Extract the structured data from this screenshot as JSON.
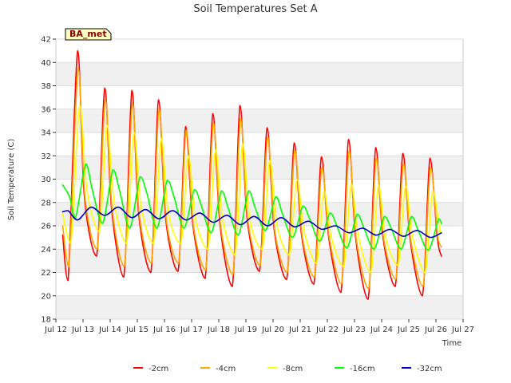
{
  "chart_data": {
    "type": "line",
    "title": "Soil Temperatures Set A",
    "xlabel": "Time",
    "ylabel": "Soil Temperature (C)",
    "badge": "BA_met",
    "xlim": [
      12,
      27
    ],
    "ylim": [
      18,
      42
    ],
    "x_ticks": [
      12,
      13,
      14,
      15,
      16,
      17,
      18,
      19,
      20,
      21,
      22,
      23,
      24,
      25,
      26,
      27
    ],
    "x_tick_labels": [
      "Jul 12",
      "Jul 13",
      "Jul 14",
      "Jul 15",
      "Jul 16",
      "Jul 17",
      "Jul 18",
      "Jul 19",
      "Jul 20",
      "Jul 21",
      "Jul 22",
      "Jul 23",
      "Jul 24",
      "Jul 25",
      "Jul 26",
      "Jul 27"
    ],
    "y_ticks": [
      18,
      20,
      22,
      24,
      26,
      28,
      30,
      32,
      34,
      36,
      38,
      40,
      42
    ],
    "y_tick_labels": [
      "18",
      "20",
      "22",
      "24",
      "26",
      "28",
      "30",
      "32",
      "34",
      "36",
      "38",
      "40",
      "42"
    ],
    "grid": "horizontal bands",
    "legend_position": "bottom",
    "series": [
      {
        "name": "-2cm",
        "color": "#ff0000",
        "points": [
          [
            12.25,
            25.2
          ],
          [
            12.45,
            21.3
          ],
          [
            12.8,
            41.0
          ],
          [
            13.05,
            28.5
          ],
          [
            13.5,
            23.4
          ],
          [
            13.8,
            37.8
          ],
          [
            14.05,
            27.5
          ],
          [
            14.5,
            21.6
          ],
          [
            14.8,
            37.6
          ],
          [
            15.05,
            27.0
          ],
          [
            15.5,
            22.0
          ],
          [
            15.78,
            36.8
          ],
          [
            16.05,
            26.5
          ],
          [
            16.5,
            22.1
          ],
          [
            16.78,
            34.5
          ],
          [
            17.05,
            26.0
          ],
          [
            17.5,
            21.5
          ],
          [
            17.78,
            35.6
          ],
          [
            18.05,
            26.0
          ],
          [
            18.5,
            20.8
          ],
          [
            18.78,
            36.3
          ],
          [
            19.05,
            26.5
          ],
          [
            19.5,
            22.1
          ],
          [
            19.78,
            34.4
          ],
          [
            20.05,
            25.5
          ],
          [
            20.5,
            21.4
          ],
          [
            20.78,
            33.1
          ],
          [
            21.05,
            25.2
          ],
          [
            21.5,
            21.0
          ],
          [
            21.78,
            31.9
          ],
          [
            22.05,
            25.0
          ],
          [
            22.5,
            20.3
          ],
          [
            22.78,
            33.4
          ],
          [
            23.05,
            24.8
          ],
          [
            23.5,
            19.7
          ],
          [
            23.78,
            32.7
          ],
          [
            24.05,
            25.0
          ],
          [
            24.5,
            20.8
          ],
          [
            24.78,
            32.2
          ],
          [
            25.05,
            24.8
          ],
          [
            25.5,
            20.0
          ],
          [
            25.78,
            31.8
          ],
          [
            26.05,
            25.0
          ],
          [
            26.2,
            23.4
          ]
        ]
      },
      {
        "name": "-4cm",
        "color": "#ffa500",
        "points": [
          [
            12.25,
            26.0
          ],
          [
            12.48,
            22.5
          ],
          [
            12.82,
            39.5
          ],
          [
            13.07,
            28.5
          ],
          [
            13.52,
            24.0
          ],
          [
            13.82,
            36.8
          ],
          [
            14.07,
            27.5
          ],
          [
            14.52,
            22.5
          ],
          [
            14.82,
            36.5
          ],
          [
            15.07,
            27.0
          ],
          [
            15.52,
            22.8
          ],
          [
            15.8,
            36.0
          ],
          [
            16.07,
            26.5
          ],
          [
            16.52,
            22.8
          ],
          [
            16.8,
            34.2
          ],
          [
            17.07,
            26.0
          ],
          [
            17.52,
            22.2
          ],
          [
            17.8,
            34.8
          ],
          [
            18.07,
            26.0
          ],
          [
            18.52,
            21.8
          ],
          [
            18.8,
            35.2
          ],
          [
            19.07,
            26.5
          ],
          [
            19.52,
            22.6
          ],
          [
            19.8,
            33.6
          ],
          [
            20.07,
            25.5
          ],
          [
            20.52,
            22.0
          ],
          [
            20.8,
            32.5
          ],
          [
            21.07,
            25.2
          ],
          [
            21.52,
            21.6
          ],
          [
            21.8,
            31.0
          ],
          [
            22.07,
            25.0
          ],
          [
            22.52,
            21.0
          ],
          [
            22.8,
            32.4
          ],
          [
            23.07,
            24.8
          ],
          [
            23.52,
            20.6
          ],
          [
            23.8,
            31.8
          ],
          [
            24.07,
            25.0
          ],
          [
            24.52,
            21.4
          ],
          [
            24.8,
            31.3
          ],
          [
            25.07,
            24.8
          ],
          [
            25.52,
            20.8
          ],
          [
            25.8,
            31.0
          ],
          [
            26.07,
            25.0
          ],
          [
            26.2,
            24.2
          ]
        ]
      },
      {
        "name": "-8cm",
        "color": "#ffff00",
        "points": [
          [
            12.25,
            27.0
          ],
          [
            12.55,
            24.5
          ],
          [
            12.88,
            36.3
          ],
          [
            13.15,
            29.0
          ],
          [
            13.6,
            25.5
          ],
          [
            13.88,
            34.6
          ],
          [
            14.15,
            28.0
          ],
          [
            14.6,
            24.5
          ],
          [
            14.88,
            34.0
          ],
          [
            15.15,
            27.5
          ],
          [
            15.6,
            24.5
          ],
          [
            15.88,
            33.5
          ],
          [
            16.15,
            27.0
          ],
          [
            16.6,
            24.5
          ],
          [
            16.88,
            32.0
          ],
          [
            17.15,
            26.5
          ],
          [
            17.6,
            24.0
          ],
          [
            17.88,
            32.5
          ],
          [
            18.15,
            26.5
          ],
          [
            18.6,
            23.5
          ],
          [
            18.88,
            33.0
          ],
          [
            19.15,
            26.5
          ],
          [
            19.6,
            24.0
          ],
          [
            19.88,
            31.6
          ],
          [
            20.15,
            26.0
          ],
          [
            20.6,
            23.5
          ],
          [
            20.88,
            30.0
          ],
          [
            21.15,
            25.5
          ],
          [
            21.6,
            22.8
          ],
          [
            21.88,
            29.0
          ],
          [
            22.15,
            25.0
          ],
          [
            22.6,
            22.5
          ],
          [
            22.88,
            29.6
          ],
          [
            23.15,
            25.0
          ],
          [
            23.6,
            22.0
          ],
          [
            23.88,
            29.5
          ],
          [
            24.15,
            25.0
          ],
          [
            24.6,
            22.6
          ],
          [
            24.88,
            29.4
          ],
          [
            25.15,
            25.0
          ],
          [
            25.6,
            22.0
          ],
          [
            25.88,
            29.0
          ],
          [
            26.15,
            25.5
          ],
          [
            26.2,
            25.5
          ]
        ]
      },
      {
        "name": "-16cm",
        "color": "#00ff00",
        "points": [
          [
            12.25,
            29.5
          ],
          [
            12.5,
            28.5
          ],
          [
            12.72,
            26.7
          ],
          [
            13.1,
            31.3
          ],
          [
            13.35,
            29.0
          ],
          [
            13.72,
            26.2
          ],
          [
            14.1,
            30.8
          ],
          [
            14.35,
            29.0
          ],
          [
            14.72,
            25.8
          ],
          [
            15.1,
            30.2
          ],
          [
            15.35,
            28.8
          ],
          [
            15.72,
            25.8
          ],
          [
            16.1,
            29.9
          ],
          [
            16.35,
            28.5
          ],
          [
            16.72,
            25.8
          ],
          [
            17.1,
            29.1
          ],
          [
            17.35,
            27.8
          ],
          [
            17.72,
            25.4
          ],
          [
            18.1,
            29.0
          ],
          [
            18.35,
            27.5
          ],
          [
            18.72,
            25.2
          ],
          [
            19.1,
            29.0
          ],
          [
            19.35,
            27.5
          ],
          [
            19.72,
            25.6
          ],
          [
            20.1,
            28.5
          ],
          [
            20.35,
            27.0
          ],
          [
            20.72,
            25.0
          ],
          [
            21.1,
            27.7
          ],
          [
            21.35,
            26.6
          ],
          [
            21.72,
            24.7
          ],
          [
            22.1,
            27.1
          ],
          [
            22.35,
            26.0
          ],
          [
            22.72,
            24.1
          ],
          [
            23.1,
            27.0
          ],
          [
            23.35,
            25.8
          ],
          [
            23.72,
            24.0
          ],
          [
            24.1,
            26.8
          ],
          [
            24.35,
            25.8
          ],
          [
            24.72,
            24.0
          ],
          [
            25.1,
            26.8
          ],
          [
            25.35,
            25.6
          ],
          [
            25.72,
            23.9
          ],
          [
            26.1,
            26.6
          ],
          [
            26.2,
            26.2
          ]
        ]
      },
      {
        "name": "-32cm",
        "color": "#0000cc",
        "points": [
          [
            12.25,
            27.2
          ],
          [
            12.45,
            27.3
          ],
          [
            12.8,
            26.5
          ],
          [
            13.3,
            27.6
          ],
          [
            13.8,
            26.9
          ],
          [
            14.3,
            27.6
          ],
          [
            14.8,
            26.7
          ],
          [
            15.3,
            27.4
          ],
          [
            15.8,
            26.6
          ],
          [
            16.3,
            27.3
          ],
          [
            16.8,
            26.5
          ],
          [
            17.3,
            27.1
          ],
          [
            17.8,
            26.3
          ],
          [
            18.3,
            26.9
          ],
          [
            18.8,
            26.1
          ],
          [
            19.3,
            26.8
          ],
          [
            19.8,
            26.0
          ],
          [
            20.3,
            26.7
          ],
          [
            20.8,
            25.9
          ],
          [
            21.3,
            26.4
          ],
          [
            21.8,
            25.7
          ],
          [
            22.3,
            26.0
          ],
          [
            22.8,
            25.4
          ],
          [
            23.3,
            25.8
          ],
          [
            23.8,
            25.2
          ],
          [
            24.3,
            25.7
          ],
          [
            24.8,
            25.1
          ],
          [
            25.3,
            25.6
          ],
          [
            25.8,
            25.0
          ],
          [
            26.2,
            25.4
          ]
        ]
      }
    ]
  }
}
